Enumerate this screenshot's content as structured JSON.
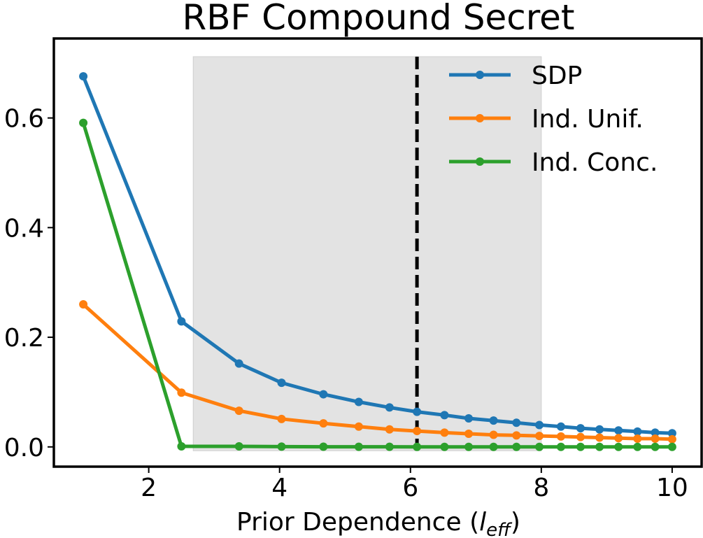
{
  "chart_data": {
    "type": "line",
    "title": "RBF Compound Secret",
    "xlabel_prefix": "Prior Dependence (",
    "xlabel_var": "l",
    "xlabel_sub": "eff",
    "xlabel_suffix": ")",
    "ylabel": "",
    "xlim": [
      0.55,
      10.45
    ],
    "ylim": [
      -0.036,
      0.745
    ],
    "xticks": [
      2,
      4,
      6,
      8,
      10
    ],
    "yticks": [
      0.0,
      0.2,
      0.4,
      0.6
    ],
    "ytick_labels": [
      "0.0",
      "0.2",
      "0.4",
      "0.6"
    ],
    "grid": false,
    "legend_position": "upper right",
    "shaded_region": {
      "x_start": 2.68,
      "x_end": 8.0,
      "color": "#e3e3e3"
    },
    "vertical_line": {
      "x": 6.1,
      "style": "dashed",
      "color": "#000000"
    },
    "x": [
      1.0,
      2.5,
      3.38,
      4.03,
      4.67,
      5.21,
      5.68,
      6.1,
      6.52,
      6.89,
      7.27,
      7.62,
      7.97,
      8.3,
      8.6,
      8.89,
      9.18,
      9.47,
      9.74,
      10.0
    ],
    "series": [
      {
        "name": "SDP",
        "color": "#1f77b4",
        "values": [
          0.676,
          0.229,
          0.152,
          0.117,
          0.096,
          0.082,
          0.072,
          0.064,
          0.058,
          0.052,
          0.048,
          0.044,
          0.04,
          0.037,
          0.034,
          0.032,
          0.03,
          0.028,
          0.026,
          0.025
        ]
      },
      {
        "name": "Ind. Unif.",
        "color": "#ff7f0e",
        "values": [
          0.26,
          0.099,
          0.066,
          0.051,
          0.043,
          0.037,
          0.032,
          0.029,
          0.026,
          0.024,
          0.022,
          0.021,
          0.02,
          0.019,
          0.018,
          0.017,
          0.016,
          0.015,
          0.015,
          0.014
        ]
      },
      {
        "name": "Ind. Conc.",
        "color": "#2ca02c",
        "values": [
          0.591,
          0.001,
          0.001,
          0.0005,
          0.0003,
          0.0002,
          0.0002,
          0.0001,
          0.0001,
          0.0001,
          0.0001,
          0.0001,
          0.0001,
          0.0001,
          0.0001,
          0.0001,
          0.0001,
          0.0001,
          0.0001,
          0.0001
        ]
      }
    ]
  }
}
